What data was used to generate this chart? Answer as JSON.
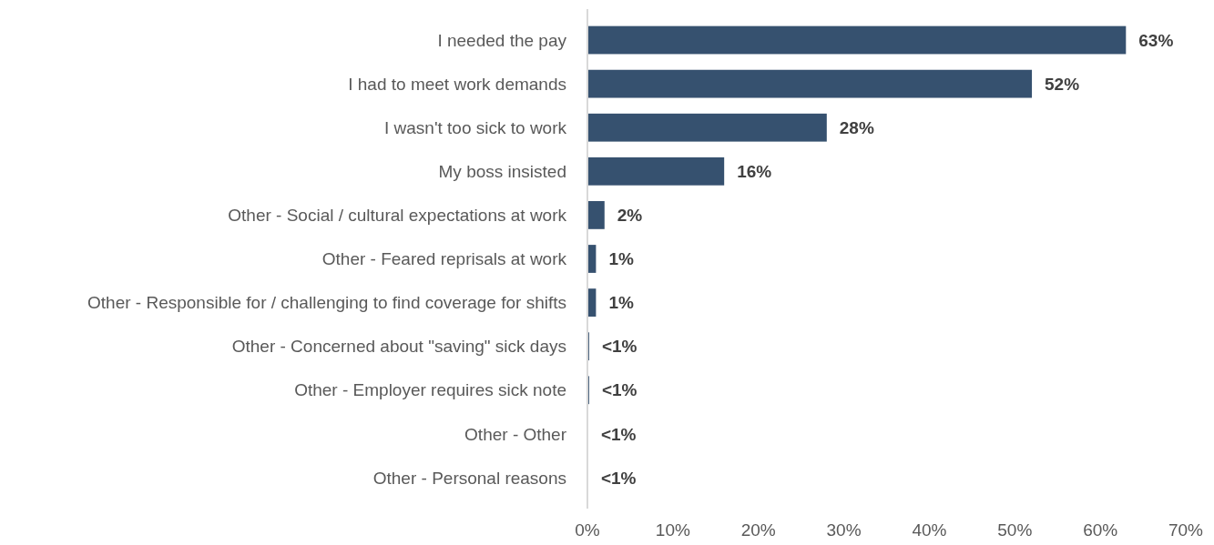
{
  "chart_data": {
    "type": "bar",
    "orientation": "horizontal",
    "categories": [
      "I needed the pay",
      "I had to meet work demands",
      "I wasn't too sick to work",
      "My boss insisted",
      "Other - Social / cultural expectations at work",
      "Other - Feared reprisals at work",
      "Other - Responsible for / challenging to find coverage for shifts",
      "Other - Concerned about \"saving\" sick days",
      "Other - Employer requires sick note",
      "Other - Other",
      "Other - Personal reasons"
    ],
    "values": [
      63,
      52,
      28,
      16,
      2,
      1,
      1,
      0.2,
      0.2,
      0.1,
      0.1
    ],
    "value_labels": [
      "63%",
      "52%",
      "28%",
      "16%",
      "2%",
      "1%",
      "1%",
      "<1%",
      "<1%",
      "<1%",
      "<1%"
    ],
    "color": "#36516f",
    "xlim": [
      0,
      70
    ],
    "xticks": [
      {
        "value": 0,
        "label": "0%"
      },
      {
        "value": 10,
        "label": "10%"
      },
      {
        "value": 20,
        "label": "20%"
      },
      {
        "value": 30,
        "label": "30%"
      },
      {
        "value": 40,
        "label": "40%"
      },
      {
        "value": 50,
        "label": "50%"
      },
      {
        "value": 60,
        "label": "60%"
      },
      {
        "value": 70,
        "label": "70%"
      }
    ],
    "grid": false
  }
}
